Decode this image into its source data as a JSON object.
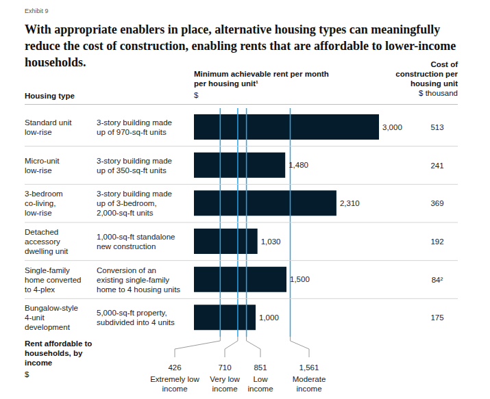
{
  "chart_data": {
    "type": "bar",
    "orientation": "horizontal",
    "exhibit": "Exhibit 9",
    "title": "With appropriate enablers in place, alternative housing types can meaningfully reduce the cost of construction, enabling rents that are affordable to lower-income households.",
    "category_header": "Housing type",
    "value_header": "Minimum achievable rent per month per housing unit¹",
    "value_unit": "$",
    "categories": [
      "Standard unit low-rise",
      "Micro-unit low-rise",
      "3-bedroom co-living, low-rise",
      "Detached accessory dwelling unit",
      "Single-family home converted to 4-plex",
      "Bungalow-style 4-unit development"
    ],
    "descriptions": [
      "3-story building made up of 970-sq-ft units",
      "3-story building made up of 350-sq-ft units",
      "3-story building made up of 3-bedroom, 2,000-sq-ft units",
      "1,000-sq-ft standalone new construction",
      "Conversion of an existing single-family home to 4 housing units",
      "5,000-sq-ft property, subdivided into 4 units"
    ],
    "values": [
      3000,
      1480,
      2310,
      1030,
      1500,
      1000
    ],
    "value_labels": [
      "3,000",
      "1,480",
      "2,310",
      "1,030",
      "1,500",
      "1,000"
    ],
    "data_labels": true,
    "color": "#051c2c",
    "xlim": [
      0,
      3000
    ],
    "tick_labels": false,
    "cost": {
      "header": "Cost of construction per housing unit",
      "unit": "$ thousand",
      "values": [
        513,
        241,
        369,
        192,
        84,
        175
      ],
      "value_labels": [
        "513",
        "241",
        "369",
        "192",
        "84²",
        "175"
      ]
    },
    "affordable_rent": {
      "header": "Rent affordable to households, by income",
      "unit": "$",
      "values": [
        426,
        710,
        851,
        1561
      ],
      "value_labels": [
        "426",
        "710",
        "851",
        "1,561"
      ],
      "names": [
        "Extremely low income",
        "Very low income",
        "Low income",
        "Moderate income"
      ],
      "color": "#2ea3e3"
    }
  }
}
